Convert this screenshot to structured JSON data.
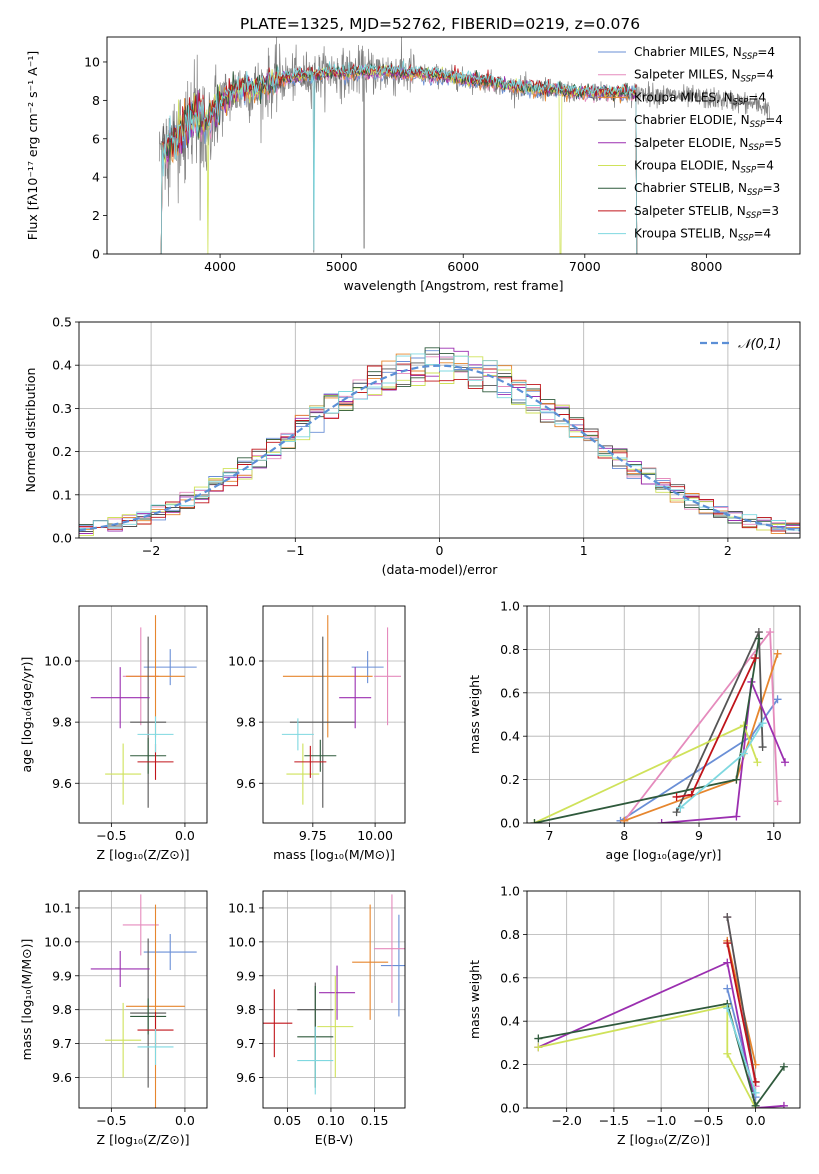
{
  "figure": {
    "title": "PLATE=1325, MJD=52762, FIBERID=0219, z=0.076"
  },
  "colors": {
    "Chabrier MILES": "#6a8fd6",
    "Salpeter MILES": "#e58bbd",
    "Kroupa MILES": "#e6862e",
    "Chabrier ELODIE": "#555555",
    "Salpeter ELODIE": "#9b2fb0",
    "Kroupa ELODIE": "#cfe25a",
    "Chabrier STELIB": "#2f5a3c",
    "Salpeter STELIB": "#c0141a",
    "Kroupa STELIB": "#7fd8e0",
    "data": "#808080",
    "normal": "#5b8fd6"
  },
  "legend_labels": [
    {
      "key": "Chabrier MILES",
      "pre": "Chabrier MILES, N",
      "sub": "SSP",
      "post": "=4"
    },
    {
      "key": "Salpeter MILES",
      "pre": "Salpeter MILES, N",
      "sub": "SSP",
      "post": "=4"
    },
    {
      "key": "Kroupa MILES",
      "pre": "Kroupa MILES, N",
      "sub": "SSP",
      "post": "=4"
    },
    {
      "key": "Chabrier ELODIE",
      "pre": "Chabrier ELODIE, N",
      "sub": "SSP",
      "post": "=4"
    },
    {
      "key": "Salpeter ELODIE",
      "pre": "Salpeter ELODIE, N",
      "sub": "SSP",
      "post": "=5"
    },
    {
      "key": "Kroupa ELODIE",
      "pre": "Kroupa ELODIE, N",
      "sub": "SSP",
      "post": "=4"
    },
    {
      "key": "Chabrier STELIB",
      "pre": "Chabrier STELIB, N",
      "sub": "SSP",
      "post": "=3"
    },
    {
      "key": "Salpeter STELIB",
      "pre": "Salpeter STELIB, N",
      "sub": "SSP",
      "post": "=3"
    },
    {
      "key": "Kroupa STELIB",
      "pre": "Kroupa STELIB, N",
      "sub": "SSP",
      "post": "=4"
    }
  ],
  "chart_data": [
    {
      "id": "spectrum",
      "type": "line",
      "title": "PLATE=1325, MJD=52762, FIBERID=0219, z=0.076",
      "xlabel": "wavelength [Angstrom, rest frame]",
      "ylabel": "Flux [fλ10⁻¹⁷ erg cm⁻² s⁻¹ A⁻¹]",
      "xlim": [
        3070,
        8770
      ],
      "ylim": [
        0,
        11.3
      ],
      "xticks": [
        4000,
        5000,
        6000,
        7000,
        8000
      ],
      "yticks": [
        0,
        2,
        4,
        6,
        8,
        10
      ],
      "grid": false,
      "legend": "right",
      "continuum": {
        "x": [
          3500,
          3600,
          3700,
          3800,
          3900,
          4000,
          4100,
          4200,
          4300,
          4400,
          4500,
          4600,
          4700,
          4800,
          4900,
          5000,
          5200,
          5400,
          5600,
          5800,
          6000,
          6200,
          6400,
          6600,
          6800,
          7000,
          7200,
          7400,
          7600,
          7800,
          8000,
          8200,
          8400,
          8500
        ],
        "y": [
          5.2,
          5.8,
          6.5,
          7.2,
          7.0,
          7.9,
          8.4,
          8.7,
          8.5,
          8.9,
          9.1,
          9.2,
          9.3,
          9.3,
          9.5,
          9.4,
          9.5,
          9.5,
          9.4,
          9.3,
          9.1,
          9.0,
          8.7,
          8.6,
          8.5,
          8.4,
          8.4,
          8.4,
          8.3,
          8.2,
          8.1,
          8.0,
          7.8,
          7.6
        ]
      },
      "data_range": [
        3500,
        8520
      ],
      "models_range": [
        3500,
        7430
      ]
    },
    {
      "id": "residuals",
      "type": "line",
      "xlabel": "(data-model)/error",
      "ylabel": "Normed distribution",
      "xlim": [
        -2.5,
        2.5
      ],
      "ylim": [
        0,
        0.5
      ],
      "xticks": [
        -2,
        -1,
        0,
        1,
        2
      ],
      "yticks": [
        0,
        0.1,
        0.2,
        0.3,
        0.4,
        0.5
      ],
      "grid": true,
      "legend": "top-right",
      "normal_label": "𝒩(0,1)",
      "bin_width": 0.1
    },
    {
      "id": "age-vs-Z",
      "type": "scatter",
      "xlabel": "Z [log₁₀(Z/Z⊙)]",
      "ylabel": "age  [log₁₀(age/yr)]",
      "xlim": [
        -0.72,
        0.15
      ],
      "ylim": [
        9.47,
        10.18
      ],
      "xticks": [
        -0.5,
        0.0
      ],
      "yticks": [
        9.6,
        9.8,
        10.0
      ],
      "grid": true,
      "points": [
        {
          "model": "Chabrier MILES",
          "x": -0.1,
          "y": 9.98,
          "xerr": 0.18,
          "yerr": 0.0
        },
        {
          "model": "Salpeter MILES",
          "x": -0.3,
          "y": 9.95,
          "xerr": 0.0,
          "yerr": 0.16
        },
        {
          "model": "Kroupa MILES",
          "x": -0.2,
          "y": 9.95,
          "xerr": 0.2,
          "yerr": 0.2
        },
        {
          "model": "Chabrier ELODIE",
          "x": -0.25,
          "y": 9.8,
          "xerr": 0.0,
          "yerr": 0.28
        },
        {
          "model": "Salpeter ELODIE",
          "x": -0.44,
          "y": 9.88,
          "xerr": 0.2,
          "yerr": 0.1
        },
        {
          "model": "Kroupa ELODIE",
          "x": -0.42,
          "y": 9.63,
          "xerr": 0.0,
          "yerr": 0.1
        },
        {
          "model": "Chabrier STELIB",
          "x": -0.25,
          "y": 9.69,
          "xerr": 0.0,
          "yerr": 0.0
        },
        {
          "model": "Salpeter STELIB",
          "x": -0.2,
          "y": 9.67,
          "xerr": 0.0,
          "yerr": 0.0
        },
        {
          "model": "Kroupa STELIB",
          "x": -0.2,
          "y": 9.76,
          "xerr": 0.0,
          "yerr": 0.0
        }
      ]
    },
    {
      "id": "age-vs-mass",
      "type": "scatter",
      "xlabel": "mass [log₁₀(M/M⊙)]",
      "ylabel": "",
      "xlim": [
        9.55,
        10.12
      ],
      "ylim": [
        9.47,
        10.18
      ],
      "xticks": [
        9.75,
        10.0
      ],
      "yticks": [
        9.6,
        9.8,
        10.0
      ],
      "grid": true
    },
    {
      "id": "weight-vs-age",
      "type": "line",
      "xlabel": "age  [log₁₀(age/yr)]",
      "ylabel": "mass weight",
      "xlim": [
        6.7,
        10.35
      ],
      "ylim": [
        0,
        1.0
      ],
      "xticks": [
        7,
        8,
        9,
        10
      ],
      "yticks": [
        0,
        0.2,
        0.4,
        0.6,
        0.8,
        1.0
      ],
      "grid": true,
      "series": [
        {
          "model": "Chabrier MILES",
          "x": [
            7.95,
            9.7,
            10.05
          ],
          "y": [
            0.01,
            0.4,
            0.57
          ]
        },
        {
          "model": "Salpeter MILES",
          "x": [
            8.0,
            9.95,
            10.05
          ],
          "y": [
            0.01,
            0.88,
            0.1
          ]
        },
        {
          "model": "Kroupa MILES",
          "x": [
            8.0,
            9.5,
            10.05
          ],
          "y": [
            0.01,
            0.2,
            0.78
          ]
        },
        {
          "model": "Chabrier ELODIE",
          "x": [
            8.7,
            9.8,
            9.85
          ],
          "y": [
            0.05,
            0.88,
            0.35
          ]
        },
        {
          "model": "Salpeter ELODIE",
          "x": [
            8.5,
            9.5,
            9.7,
            10.15
          ],
          "y": [
            0.0,
            0.03,
            0.65,
            0.28
          ]
        },
        {
          "model": "Kroupa ELODIE",
          "x": [
            6.8,
            9.6,
            9.78
          ],
          "y": [
            0.0,
            0.45,
            0.28
          ]
        },
        {
          "model": "Chabrier STELIB",
          "x": [
            6.8,
            9.5,
            9.8
          ],
          "y": [
            0.0,
            0.2,
            0.85
          ]
        },
        {
          "model": "Salpeter STELIB",
          "x": [
            8.7,
            8.9,
            9.75
          ],
          "y": [
            0.12,
            0.13,
            0.76
          ]
        },
        {
          "model": "Kroupa STELIB",
          "x": [
            8.75,
            9.6,
            9.85
          ],
          "y": [
            0.07,
            0.32,
            0.46
          ]
        }
      ]
    },
    {
      "id": "mass-vs-Z",
      "type": "scatter",
      "xlabel": "Z [log₁₀(Z/Z⊙)]",
      "ylabel": "mass [log₁₀(M/M⊙)]",
      "xlim": [
        -0.72,
        0.15
      ],
      "ylim": [
        9.51,
        10.15
      ],
      "xticks": [
        -0.5,
        0.0
      ],
      "yticks": [
        9.6,
        9.7,
        9.8,
        9.9,
        10.0,
        10.1
      ],
      "grid": true,
      "points": [
        {
          "model": "Chabrier MILES",
          "x": -0.1,
          "y": 9.97,
          "xerr": 0.18,
          "yerr": 0.0
        },
        {
          "model": "Salpeter MILES",
          "x": -0.3,
          "y": 10.05,
          "xerr": 0.0,
          "yerr": 0.09
        },
        {
          "model": "Kroupa MILES",
          "x": -0.2,
          "y": 9.81,
          "xerr": 0.2,
          "yerr": 0.3
        },
        {
          "model": "Chabrier ELODIE",
          "x": -0.25,
          "y": 9.79,
          "xerr": 0.0,
          "yerr": 0.22
        },
        {
          "model": "Salpeter ELODIE",
          "x": -0.44,
          "y": 9.92,
          "xerr": 0.2,
          "yerr": 0.0
        },
        {
          "model": "Kroupa ELODIE",
          "x": -0.42,
          "y": 9.71,
          "xerr": 0.0,
          "yerr": 0.11
        },
        {
          "model": "Chabrier STELIB",
          "x": -0.25,
          "y": 9.78,
          "xerr": 0.0,
          "yerr": 0.0
        },
        {
          "model": "Salpeter STELIB",
          "x": -0.2,
          "y": 9.74,
          "xerr": 0.0,
          "yerr": 0.0
        },
        {
          "model": "Kroupa STELIB",
          "x": -0.2,
          "y": 9.69,
          "xerr": 0.0,
          "yerr": 0.0
        }
      ]
    },
    {
      "id": "mass-vs-ebv",
      "type": "scatter",
      "xlabel": "E(B-V)",
      "ylabel": "",
      "xlim": [
        0.022,
        0.185
      ],
      "ylim": [
        9.51,
        10.15
      ],
      "xticks": [
        0.05,
        0.1,
        0.15
      ],
      "yticks": [
        9.6,
        9.7,
        9.8,
        9.9,
        10.0,
        10.1
      ],
      "grid": true,
      "points": [
        {
          "model": "Chabrier MILES",
          "x": 0.178,
          "y": 9.93,
          "xerr": 0.0,
          "yerr": 0.15
        },
        {
          "model": "Salpeter MILES",
          "x": 0.17,
          "y": 9.98,
          "xerr": 0.0,
          "yerr": 0.16
        },
        {
          "model": "Kroupa MILES",
          "x": 0.145,
          "y": 9.94,
          "xerr": 0.0,
          "yerr": 0.17
        },
        {
          "model": "Chabrier ELODIE",
          "x": 0.082,
          "y": 9.8,
          "xerr": 0.0,
          "yerr": 0.08
        },
        {
          "model": "Salpeter ELODIE",
          "x": 0.107,
          "y": 9.85,
          "xerr": 0.0,
          "yerr": 0.08
        },
        {
          "model": "Kroupa ELODIE",
          "x": 0.105,
          "y": 9.75,
          "xerr": 0.0,
          "yerr": 0.15
        },
        {
          "model": "Chabrier STELIB",
          "x": 0.082,
          "y": 9.72,
          "xerr": 0.0,
          "yerr": 0.15
        },
        {
          "model": "Salpeter STELIB",
          "x": 0.035,
          "y": 9.76,
          "xerr": 0.0,
          "yerr": 0.1
        },
        {
          "model": "Kroupa STELIB",
          "x": 0.082,
          "y": 9.65,
          "xerr": 0.0,
          "yerr": 0.1
        }
      ]
    },
    {
      "id": "weight-vs-Z",
      "type": "line",
      "xlabel": "Z [log₁₀(Z/Z⊙)]",
      "ylabel": "mass weight",
      "xlim": [
        -2.42,
        0.47
      ],
      "ylim": [
        0,
        1.0
      ],
      "xticks": [
        -2.0,
        -1.5,
        -1.0,
        -0.5,
        0.0
      ],
      "yticks": [
        0,
        0.2,
        0.4,
        0.6,
        0.8,
        1.0
      ],
      "grid": true,
      "series": [
        {
          "model": "Chabrier MILES",
          "x": [
            -0.3,
            0.0
          ],
          "y": [
            0.55,
            0.05
          ]
        },
        {
          "model": "Salpeter MILES",
          "x": [
            -0.3,
            0.0
          ],
          "y": [
            0.88,
            0.1
          ]
        },
        {
          "model": "Kroupa MILES",
          "x": [
            -0.3,
            0.0
          ],
          "y": [
            0.77,
            0.2
          ]
        },
        {
          "model": "Chabrier ELODIE",
          "x": [
            -0.3,
            0.0
          ],
          "y": [
            0.88,
            0.12
          ]
        },
        {
          "model": "Salpeter ELODIE",
          "x": [
            -2.3,
            -0.3,
            0.0,
            0.3
          ],
          "y": [
            0.28,
            0.67,
            0.0,
            0.01
          ]
        },
        {
          "model": "Kroupa ELODIE",
          "x": [
            -2.3,
            -0.3,
            -0.3,
            0.0
          ],
          "y": [
            0.28,
            0.47,
            0.25,
            0.0
          ]
        },
        {
          "model": "Chabrier STELIB",
          "x": [
            -2.3,
            -0.3,
            0.0,
            0.3
          ],
          "y": [
            0.32,
            0.48,
            0.01,
            0.19
          ]
        },
        {
          "model": "Salpeter STELIB",
          "x": [
            -0.3,
            0.0
          ],
          "y": [
            0.76,
            0.12
          ]
        },
        {
          "model": "Kroupa STELIB",
          "x": [
            -0.3,
            0.0
          ],
          "y": [
            0.46,
            0.07
          ]
        }
      ]
    }
  ]
}
